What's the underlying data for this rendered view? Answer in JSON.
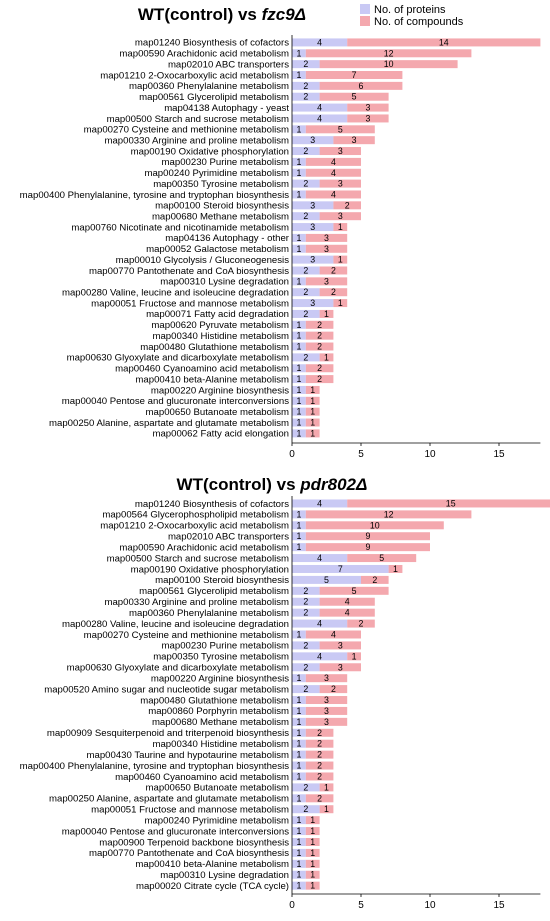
{
  "colors": {
    "proteins": "#c9c9f4",
    "compounds": "#f4a8ae"
  },
  "legend": {
    "proteins": "No. of proteins",
    "compounds": "No. of compounds"
  },
  "chart_data": [
    {
      "type": "bar",
      "orientation": "horizontal",
      "stacked": true,
      "title_prefix": "WT(control) vs ",
      "title_strain": "fzc9Δ",
      "xlim": [
        0,
        18
      ],
      "xticks": [
        0,
        5,
        10,
        15
      ],
      "categories": [
        "map01240 Biosynthesis of cofactors",
        "map00590 Arachidonic acid metabolism",
        "map02010 ABC transporters",
        "map01210 2-Oxocarboxylic acid metabolism",
        "map00360 Phenylalanine metabolism",
        "map00561 Glycerolipid metabolism",
        "map04138 Autophagy - yeast",
        "map00500 Starch and sucrose metabolism",
        "map00270 Cysteine and methionine metabolism",
        "map00330 Arginine and proline metabolism",
        "map00190 Oxidative phosphorylation",
        "map00230 Purine metabolism",
        "map00240 Pyrimidine metabolism",
        "map00350 Tyrosine metabolism",
        "map00400 Phenylalanine, tyrosine and tryptophan biosynthesis",
        "map00100 Steroid biosynthesis",
        "map00680 Methane metabolism",
        "map00760 Nicotinate and nicotinamide metabolism",
        "map04136 Autophagy - other",
        "map00052 Galactose metabolism",
        "map00010 Glycolysis / Gluconeogenesis",
        "map00770 Pantothenate and CoA biosynthesis",
        "map00310 Lysine degradation",
        "map00280 Valine, leucine and isoleucine degradation",
        "map00051 Fructose and mannose metabolism",
        "map00071 Fatty acid degradation",
        "map00620 Pyruvate metabolism",
        "map00340 Histidine metabolism",
        "map00480 Glutathione metabolism",
        "map00630 Glyoxylate and dicarboxylate metabolism",
        "map00460 Cyanoamino acid metabolism",
        "map00410 beta-Alanine metabolism",
        "map00220 Arginine biosynthesis",
        "map00040 Pentose and glucuronate interconversions",
        "map00650 Butanoate metabolism",
        "map00250 Alanine, aspartate and glutamate metabolism",
        "map00062 Fatty acid elongation"
      ],
      "series": [
        {
          "name": "No. of proteins",
          "values": [
            4,
            1,
            2,
            1,
            2,
            2,
            4,
            4,
            1,
            3,
            2,
            1,
            1,
            2,
            1,
            3,
            2,
            3,
            1,
            1,
            3,
            2,
            1,
            2,
            3,
            2,
            1,
            1,
            1,
            2,
            1,
            1,
            1,
            1,
            1,
            1,
            1
          ]
        },
        {
          "name": "No. of compounds",
          "values": [
            14,
            12,
            10,
            7,
            6,
            5,
            3,
            3,
            5,
            3,
            3,
            4,
            4,
            3,
            4,
            2,
            3,
            1,
            3,
            3,
            1,
            2,
            3,
            2,
            1,
            1,
            2,
            2,
            2,
            1,
            2,
            2,
            1,
            1,
            1,
            1,
            1
          ]
        }
      ]
    },
    {
      "type": "bar",
      "orientation": "horizontal",
      "stacked": true,
      "title_prefix": "WT(control) vs ",
      "title_strain": "pdr802Δ",
      "xlim": [
        0,
        18
      ],
      "xticks": [
        0,
        5,
        10,
        15
      ],
      "categories": [
        "map01240 Biosynthesis of cofactors",
        "map00564 Glycerophospholipid metabolism",
        "map01210 2-Oxocarboxylic acid metabolism",
        "map02010 ABC transporters",
        "map00590 Arachidonic acid metabolism",
        "map00500 Starch and sucrose metabolism",
        "map00190 Oxidative phosphorylation",
        "map00100 Steroid biosynthesis",
        "map00561 Glycerolipid metabolism",
        "map00330 Arginine and proline metabolism",
        "map00360 Phenylalanine metabolism",
        "map00280 Valine, leucine and isoleucine degradation",
        "map00270 Cysteine and methionine metabolism",
        "map00230 Purine metabolism",
        "map00350 Tyrosine metabolism",
        "map00630 Glyoxylate and dicarboxylate metabolism",
        "map00220 Arginine biosynthesis",
        "map00520 Amino sugar and nucleotide sugar metabolism",
        "map00480 Glutathione metabolism",
        "map00860 Porphyrin metabolism",
        "map00680 Methane metabolism",
        "map00909 Sesquiterpenoid and triterpenoid biosynthesis",
        "map00340 Histidine metabolism",
        "map00430 Taurine and hypotaurine metabolism",
        "map00400 Phenylalanine, tyrosine and tryptophan biosynthesis",
        "map00460 Cyanoamino acid metabolism",
        "map00650 Butanoate metabolism",
        "map00250 Alanine, aspartate and glutamate metabolism",
        "map00051 Fructose and mannose metabolism",
        "map00240 Pyrimidine metabolism",
        "map00040 Pentose and glucuronate interconversions",
        "map00900 Terpenoid backbone biosynthesis",
        "map00770 Pantothenate and CoA biosynthesis",
        "map00410 beta-Alanine metabolism",
        "map00310 Lysine degradation",
        "map00020 Citrate cycle (TCA cycle)"
      ],
      "series": [
        {
          "name": "No. of proteins",
          "values": [
            4,
            1,
            1,
            1,
            1,
            4,
            7,
            5,
            2,
            2,
            2,
            4,
            1,
            2,
            4,
            2,
            1,
            2,
            1,
            1,
            1,
            1,
            1,
            1,
            1,
            1,
            2,
            1,
            2,
            1,
            1,
            1,
            1,
            1,
            1,
            1
          ]
        },
        {
          "name": "No. of compounds",
          "values": [
            15,
            12,
            10,
            9,
            9,
            5,
            1,
            2,
            5,
            4,
            4,
            2,
            4,
            3,
            1,
            3,
            3,
            2,
            3,
            3,
            3,
            2,
            2,
            2,
            2,
            2,
            1,
            2,
            1,
            1,
            1,
            1,
            1,
            1,
            1,
            1
          ]
        }
      ]
    }
  ]
}
